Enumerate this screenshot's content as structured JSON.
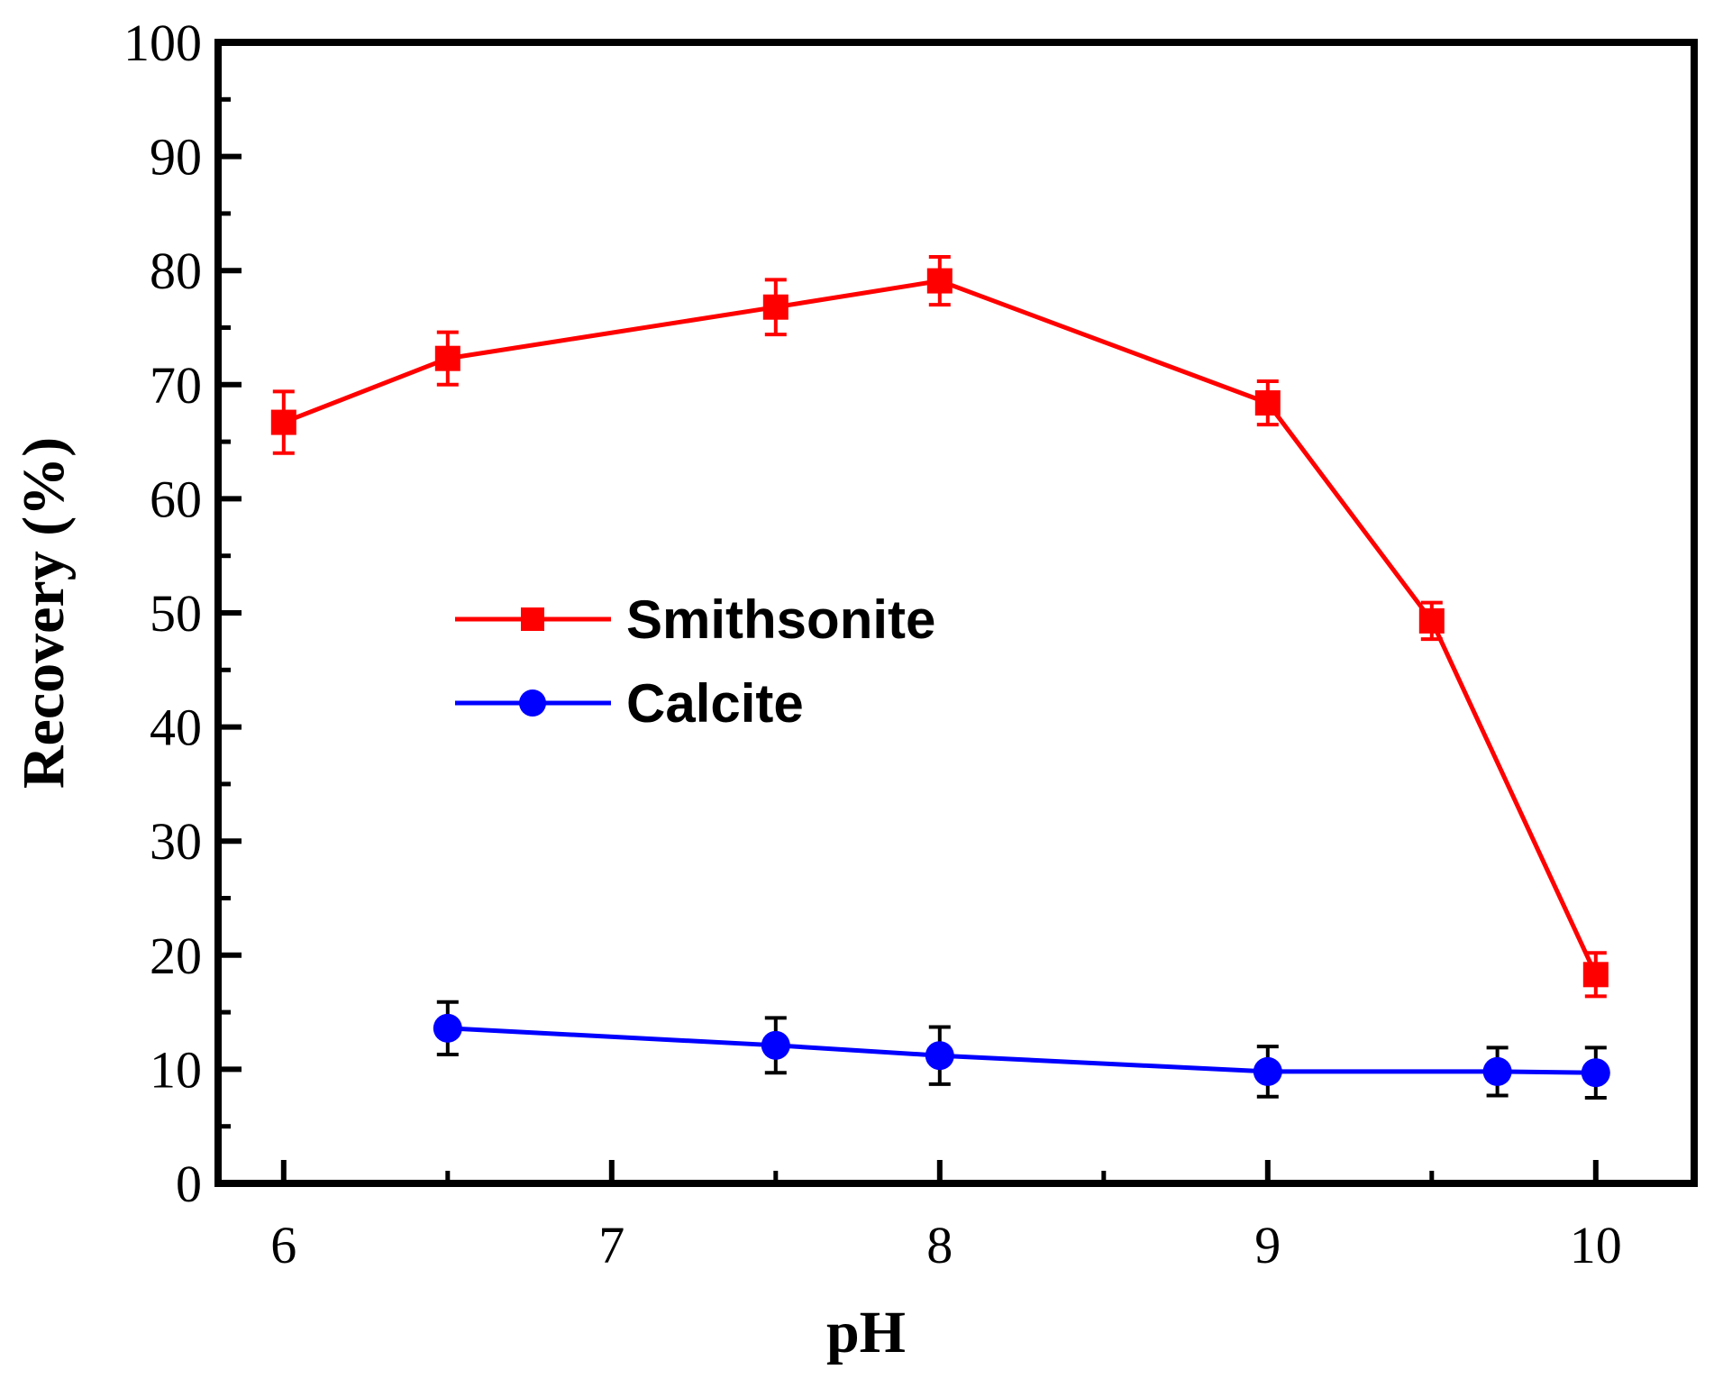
{
  "chart_data": {
    "type": "line",
    "title": "",
    "xlabel": "pH",
    "ylabel": "Recovery (%)",
    "xlim": [
      5.8,
      10.3
    ],
    "ylim": [
      0,
      100
    ],
    "xticks": [
      6,
      7,
      8,
      9,
      10
    ],
    "xtick_labels": [
      "6",
      "7",
      "8",
      "9",
      "10"
    ],
    "yticks": [
      0,
      10,
      20,
      30,
      40,
      50,
      60,
      70,
      80,
      90,
      100
    ],
    "ytick_labels": [
      "0",
      "10",
      "20",
      "30",
      "40",
      "50",
      "60",
      "70",
      "80",
      "90",
      "100"
    ],
    "legend_position": "center-left",
    "series": [
      {
        "name": "Smithsonite",
        "color": "#ff0000",
        "error_color": "#ff0000",
        "marker": "square",
        "x": [
          6.0,
          6.5,
          7.5,
          8.0,
          9.0,
          9.5,
          10.0
        ],
        "y": [
          66.7,
          72.3,
          76.8,
          79.1,
          68.4,
          49.3,
          18.3
        ],
        "err": [
          2.7,
          2.3,
          2.4,
          2.1,
          1.9,
          1.6,
          1.9
        ]
      },
      {
        "name": "Calcite",
        "color": "#0000ff",
        "error_color": "#000000",
        "marker": "circle",
        "x": [
          6.5,
          7.5,
          8.0,
          9.0,
          9.7,
          10.0
        ],
        "y": [
          13.6,
          12.1,
          11.2,
          9.8,
          9.8,
          9.7
        ],
        "err": [
          2.3,
          2.4,
          2.5,
          2.2,
          2.1,
          2.2
        ]
      }
    ]
  }
}
